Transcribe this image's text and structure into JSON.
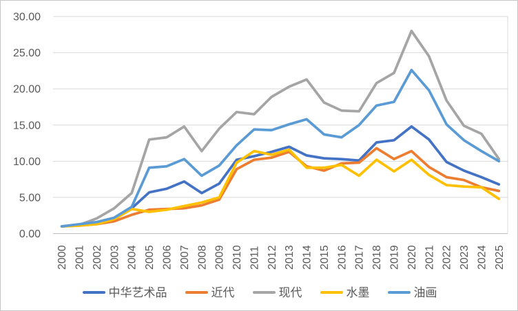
{
  "chart": {
    "type": "line",
    "title": "",
    "xlabel": "",
    "ylabel": "",
    "ylim": [
      0,
      30
    ],
    "ytick_step": 5,
    "ytick_labels": [
      "0.00",
      "5.00",
      "10.00",
      "15.00",
      "20.00",
      "25.00",
      "30.00"
    ],
    "grid": true,
    "legend_position": "bottom",
    "categories": [
      "2000",
      "2001",
      "2002",
      "2003",
      "2004",
      "2005",
      "2006",
      "2007",
      "2008",
      "2009",
      "2010",
      "2011",
      "2012",
      "2013",
      "2014",
      "2015",
      "2016",
      "2017",
      "2018",
      "2019",
      "2020",
      "2021",
      "2022",
      "2023",
      "2024",
      "2025"
    ],
    "series": [
      {
        "name": "中华艺术品",
        "slug": "chinese-art",
        "color": "#4472C4",
        "values": [
          1.0,
          1.2,
          1.5,
          2.1,
          3.5,
          5.7,
          6.2,
          7.2,
          5.6,
          6.9,
          10.2,
          10.7,
          11.3,
          12.0,
          10.8,
          10.4,
          10.3,
          10.1,
          12.6,
          12.9,
          14.8,
          13.0,
          9.9,
          8.7,
          7.8,
          6.8
        ]
      },
      {
        "name": "近代",
        "slug": "modern-era",
        "color": "#ED7D31",
        "values": [
          1.0,
          1.1,
          1.3,
          1.7,
          2.6,
          3.3,
          3.4,
          3.5,
          3.9,
          4.7,
          8.9,
          10.2,
          10.5,
          11.3,
          9.3,
          8.7,
          9.7,
          9.8,
          11.8,
          10.3,
          11.4,
          9.2,
          7.8,
          7.4,
          6.4,
          5.9
        ]
      },
      {
        "name": "现代",
        "slug": "contemporary",
        "color": "#A5A5A5",
        "values": [
          1.0,
          1.2,
          2.1,
          3.5,
          5.6,
          13.0,
          13.3,
          14.8,
          11.4,
          14.5,
          16.8,
          16.5,
          18.9,
          20.3,
          21.3,
          18.1,
          17.0,
          16.9,
          20.8,
          22.2,
          28.0,
          24.5,
          18.4,
          14.9,
          13.8,
          10.3
        ]
      },
      {
        "name": "水墨",
        "slug": "ink-wash",
        "color": "#FFC000",
        "values": [
          1.0,
          1.1,
          1.3,
          2.0,
          3.4,
          3.0,
          3.3,
          3.8,
          4.3,
          5.0,
          9.8,
          11.4,
          10.9,
          11.6,
          9.1,
          9.1,
          9.5,
          8.0,
          10.2,
          8.6,
          10.2,
          8.1,
          6.7,
          6.5,
          6.4,
          4.8
        ]
      },
      {
        "name": "油画",
        "slug": "oil-painting",
        "color": "#5B9BD5",
        "values": [
          1.0,
          1.3,
          1.6,
          2.2,
          3.7,
          9.1,
          9.3,
          10.3,
          8.0,
          9.4,
          12.2,
          14.4,
          14.3,
          15.1,
          15.8,
          13.7,
          13.3,
          15.0,
          17.7,
          18.2,
          22.6,
          19.8,
          15.1,
          12.9,
          11.4,
          10.0
        ]
      }
    ],
    "colors": {
      "grid": "#D9D9D9",
      "axis_line": "#BFBFBF",
      "tick_text": "#595959",
      "legend_text": "#595959",
      "background": "#FFFFFF"
    }
  }
}
